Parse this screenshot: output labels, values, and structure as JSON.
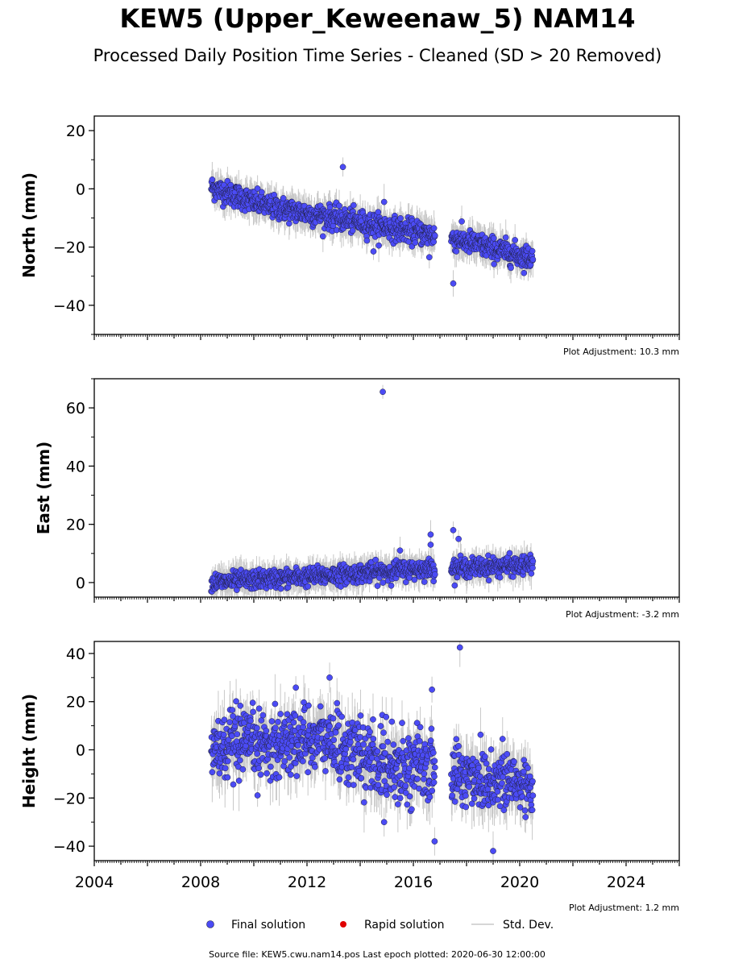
{
  "header": {
    "title": "KEW5 (Upper_Keweenaw_5) NAM14",
    "subtitle": "Processed Daily Position Time Series - Cleaned (SD > 20 Removed)"
  },
  "legend": {
    "final_label": "Final solution",
    "rapid_label": "Rapid solution",
    "std_label": "Std. Dev."
  },
  "colors": {
    "final": "#4b4bf5",
    "rapid": "#e00000",
    "std": "#c8c8c8",
    "marker_edge": "#202040"
  },
  "footer": {
    "source_text": "Source file: KEW5.cwu.nam14.pos  Last epoch plotted: 2020-06-30 12:00:00"
  },
  "chart_data": [
    {
      "type": "scatter",
      "ylabel": "North (mm)",
      "adjustment": "Plot Adjustment: 10.3 mm",
      "xlim": [
        2004,
        2026
      ],
      "ylim": [
        -50,
        25
      ],
      "yticks": [
        20,
        0,
        -20,
        -40
      ],
      "ytick_labels": [
        "20",
        "0",
        "−20",
        "−40"
      ],
      "trend": [
        [
          2008.4,
          0.5
        ],
        [
          2010.5,
          -6
        ],
        [
          2013.0,
          -10
        ],
        [
          2016.8,
          -16
        ],
        [
          2017.5,
          -17
        ],
        [
          2020.5,
          -24
        ]
      ],
      "scatter_sd": 2.0,
      "errbar": 4.5,
      "outliers": [
        [
          2013.35,
          7.5
        ],
        [
          2017.5,
          -32.5
        ],
        [
          2014.9,
          -4.5
        ],
        [
          2014.5,
          -21.5
        ],
        [
          2016.6,
          -23.5
        ]
      ]
    },
    {
      "type": "scatter",
      "ylabel": "East (mm)",
      "adjustment": "Plot Adjustment: -3.2 mm",
      "xlim": [
        2004,
        2026
      ],
      "ylim": [
        -5,
        70
      ],
      "yticks": [
        60,
        40,
        20,
        0
      ],
      "ytick_labels": [
        "60",
        "40",
        "20",
        "0"
      ],
      "trend": [
        [
          2008.4,
          0
        ],
        [
          2012.0,
          2
        ],
        [
          2016.8,
          5
        ],
        [
          2017.5,
          5
        ],
        [
          2020.5,
          6
        ]
      ],
      "scatter_sd": 1.6,
      "errbar": 4.0,
      "outliers": [
        [
          2014.85,
          65.5
        ],
        [
          2016.65,
          16.5
        ],
        [
          2017.5,
          18
        ],
        [
          2017.7,
          15
        ],
        [
          2016.65,
          13
        ],
        [
          2015.5,
          11
        ]
      ]
    },
    {
      "type": "scatter",
      "ylabel": "Height (mm)",
      "adjustment": "Plot Adjustment: 1.2 mm",
      "xlim": [
        2004,
        2026
      ],
      "ylim": [
        -46,
        45
      ],
      "yticks": [
        40,
        20,
        0,
        -20,
        -40
      ],
      "ytick_labels": [
        "40",
        "20",
        "0",
        "−20",
        "−40"
      ],
      "xticks": [
        2004,
        2008,
        2012,
        2016,
        2020,
        2024
      ],
      "xtick_labels": [
        "2004",
        "2008",
        "2012",
        "2016",
        "2020",
        "2024"
      ],
      "trend": [
        [
          2008.4,
          0
        ],
        [
          2012.5,
          5
        ],
        [
          2014.5,
          -5
        ],
        [
          2016.8,
          -8
        ],
        [
          2017.5,
          -10
        ],
        [
          2020.5,
          -15
        ]
      ],
      "scatter_sd": 7.0,
      "errbar": 9.0,
      "outliers": [
        [
          2017.75,
          42.5
        ],
        [
          2016.7,
          25
        ],
        [
          2012.85,
          30
        ],
        [
          2016.8,
          -38
        ],
        [
          2019.0,
          -42
        ],
        [
          2014.9,
          -30
        ]
      ]
    }
  ]
}
